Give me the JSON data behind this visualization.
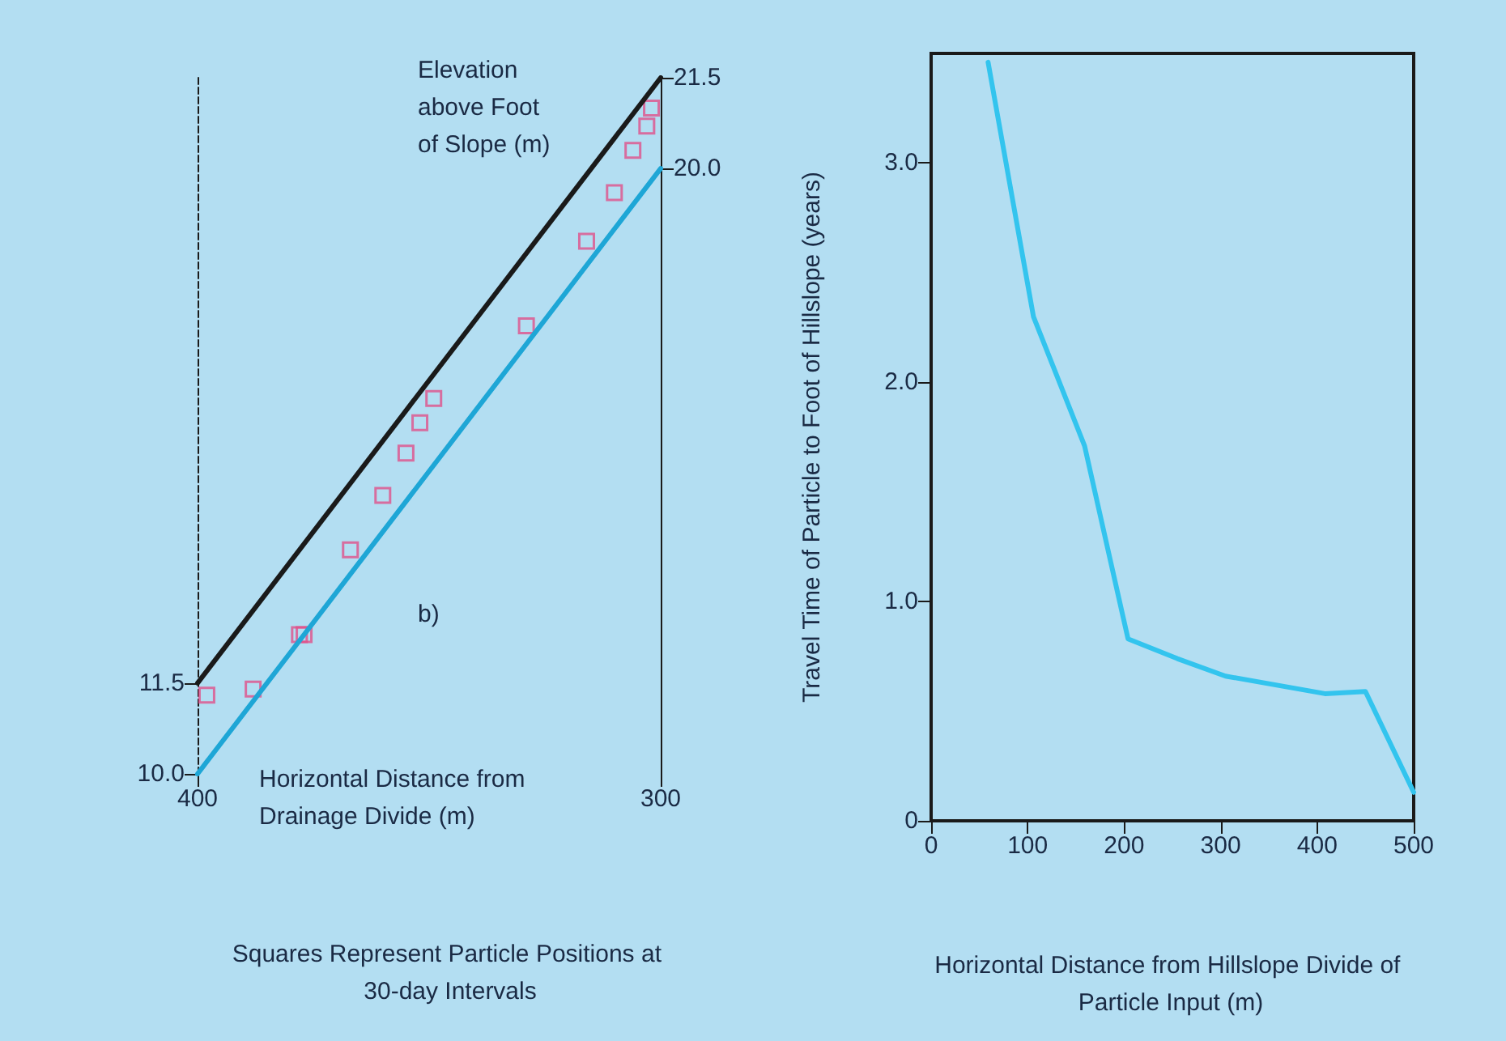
{
  "chart_data": [
    {
      "type": "line",
      "y2label": "Elevation above Foot of Slope (m)",
      "xlabel": "Horizontal Distance from Drainage Divide (m)",
      "annotations": [
        "b)",
        "Squares Represent Particle Positions at 30-day Intervals"
      ],
      "xlim": [
        400,
        300
      ],
      "xticks": [
        400,
        300
      ],
      "ylim": [
        10,
        21.5
      ],
      "yticks": [
        {
          "value": 10,
          "label": "10.0"
        },
        11.5
      ],
      "y2lim": [
        10,
        21.5
      ],
      "y2ticks": [
        {
          "value": 20,
          "label": "20.0"
        },
        21.5
      ],
      "grid": false,
      "series": [
        {
          "type": "line",
          "color": "#1ea6d6",
          "x": [
            400,
            300
          ],
          "values": [
            10,
            20
          ]
        },
        {
          "type": "line",
          "color": "#1a1a1a",
          "x": [
            400,
            300
          ],
          "values": [
            11.5,
            21.5
          ]
        },
        {
          "type": "scatter",
          "marker": "square",
          "color": "#e0508a",
          "x": [
            398,
            388,
            378,
            377,
            367,
            360,
            355,
            352,
            349,
            329,
            316,
            310,
            306,
            303,
            302
          ],
          "values": [
            11.3,
            11.4,
            12.3,
            12.3,
            13.7,
            14.6,
            15.3,
            15.8,
            16.2,
            17.4,
            18.8,
            19.6,
            20.3,
            20.7,
            21.0
          ]
        }
      ]
    },
    {
      "type": "line",
      "ylabel": "Travel Time of Particle to Foot of Hillslope (years)",
      "xlabel": "Horizontal Distance from Hillslope Divide of Particle Input (m)",
      "xlim": [
        0,
        500
      ],
      "xticks": [
        0,
        100,
        200,
        300,
        400,
        500
      ],
      "ylim": [
        0,
        3.5
      ],
      "yticks": [
        0,
        {
          "value": 1,
          "label": "1.0"
        },
        {
          "value": 2,
          "label": "2.0"
        },
        {
          "value": 3,
          "label": "3.0"
        }
      ],
      "grid": false,
      "marker": "none",
      "series": [
        {
          "color": "#33c4ee",
          "x": [
            59,
            106,
            159,
            204,
            255,
            305,
            408,
            450,
            500
          ],
          "values": [
            3.46,
            2.3,
            1.71,
            0.83,
            0.74,
            0.66,
            0.58,
            0.59,
            0.13
          ]
        }
      ]
    }
  ]
}
